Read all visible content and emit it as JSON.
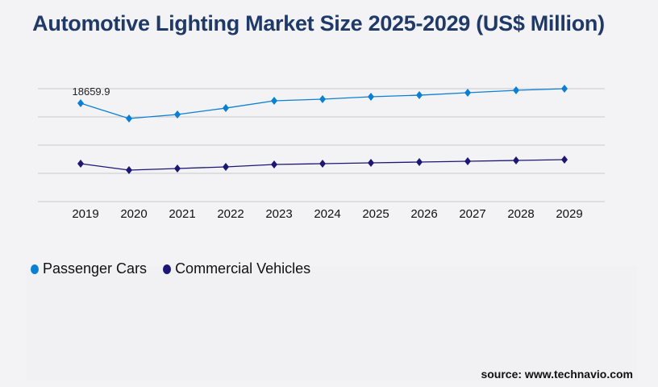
{
  "chart_data": {
    "type": "line",
    "title": "Automotive Lighting Market Size 2025-2029 (US$ Million)",
    "categories": [
      "2019",
      "2020",
      "2021",
      "2022",
      "2023",
      "2024",
      "2025",
      "2026",
      "2027",
      "2028",
      "2029"
    ],
    "series": [
      {
        "name": "Passenger Cars",
        "color": "#0a7fd4",
        "values": [
          18659.9,
          15760,
          16520,
          17740,
          19120,
          19430,
          19890,
          20190,
          20650,
          21110,
          21420
        ]
      },
      {
        "name": "Commercial Vehicles",
        "color": "#1c1675",
        "values": [
          7190,
          5970,
          6270,
          6580,
          7040,
          7190,
          7340,
          7500,
          7650,
          7800,
          7960
        ]
      }
    ],
    "data_labels": [
      {
        "series": 0,
        "index": 0,
        "text": "18659.9"
      }
    ],
    "ylim": [
      0,
      21420
    ],
    "y_ticks_shown": false,
    "grid": true,
    "legend": "bottom-left",
    "marker": "diamond",
    "source": "source: www.technavio.com"
  }
}
